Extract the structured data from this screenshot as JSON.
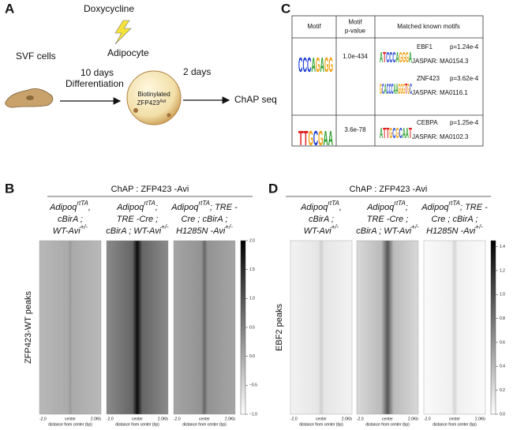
{
  "panel_a": {
    "label": "A",
    "inducer": "Doxycycline",
    "product": "Adipocyte",
    "start": "SVF cells",
    "step1": [
      "10 days",
      "Differentiation"
    ],
    "cell": [
      "Biotinylated",
      "ZFP423"
    ],
    "cell_sup": "Avi",
    "step2": "2 days",
    "end": "ChAP seq"
  },
  "panel_c": {
    "label": "C",
    "columns": [
      [
        "Motif"
      ],
      [
        "Motif",
        "p-value"
      ],
      [
        "Matched known motifs"
      ]
    ],
    "rows": [
      {
        "logo": [
          "C",
          "C",
          "C",
          "A",
          "G",
          "A",
          "G",
          "G"
        ],
        "p_value": "1.0e-434",
        "matches": [
          {
            "name": "EBF1",
            "p": "p=1.24e-4",
            "jaspar": "JASPAR: MA0154.3",
            "logo": [
              "A",
              "T",
              "C",
              "C",
              "C",
              "A",
              "G",
              "G",
              "G",
              "A"
            ]
          },
          {
            "name": "ZNF423",
            "p": "p=3.62e-4",
            "jaspar": "JASPAR: MA0116.1",
            "logo": [
              "G",
              "C",
              "A",
              "C",
              "C",
              "C",
              "A",
              "A",
              "G",
              "G",
              "G",
              "T",
              "G",
              "C"
            ]
          }
        ]
      },
      {
        "logo": [
          "T",
          "T",
          "G",
          "C",
          "G",
          "A",
          "A"
        ],
        "p_value": "3.6e-78",
        "matches": [
          {
            "name": "CEBPA",
            "p": "p=1.25e-4",
            "jaspar": "JASPAR: MA0102.3",
            "logo": [
              "A",
              "T",
              "T",
              "G",
              "C",
              "G",
              "C",
              "A",
              "A",
              "T"
            ]
          }
        ]
      }
    ]
  },
  "panel_b": {
    "label": "B",
    "title": "ChAP : ZFP423 -Avi",
    "y_label": "ZFP423-WT peaks",
    "samples": [
      [
        {
          "text": "Adipoq",
          "sup": "rtTA",
          "after": ","
        },
        {
          "text": "cBirA ;"
        },
        {
          "text": "WT-Avi",
          "sup": "+/-"
        }
      ],
      [
        {
          "text": "Adipoq",
          "sup": "rtTA",
          "after": ";"
        },
        {
          "text": "TRE -Cre ;"
        },
        {
          "text": "cBirA ; WT-Avi",
          "sup": "+/-"
        }
      ],
      [
        {
          "text": "Adipoq",
          "sup": "rtTA",
          "after": "; TRE -"
        },
        {
          "text": "Cre ; cBirA ;"
        },
        {
          "text": "H1285N -Avi",
          "sup": "+/-"
        }
      ]
    ],
    "x_ticks": [
      "-2.0",
      "center",
      "2.0Kb"
    ],
    "x_label": "distance from center (bp)",
    "colorbar": {
      "lim": [
        -1,
        2
      ],
      "ticks": [
        {
          "value": 2,
          "label": "2.0"
        },
        {
          "value": 1.5,
          "label": "1.5"
        },
        {
          "value": 1,
          "label": "1.0"
        },
        {
          "value": 0.5,
          "label": "0.5"
        },
        {
          "value": 0,
          "label": "0.0"
        },
        {
          "value": -0.5,
          "label": "−0.5"
        },
        {
          "value": -1,
          "label": "−1.0"
        }
      ]
    }
  },
  "panel_d": {
    "label": "D",
    "title": "ChAP : ZFP423 -Avi",
    "y_label": "EBF2 peaks",
    "samples": [
      [
        {
          "text": "Adipoq",
          "sup": "rtTA",
          "after": ","
        },
        {
          "text": "cBirA ;"
        },
        {
          "text": "WT-Avi",
          "sup": "+/-"
        }
      ],
      [
        {
          "text": "Adipoq",
          "sup": "rtTA",
          "after": ";"
        },
        {
          "text": "TRE -Cre ;"
        },
        {
          "text": "cBirA ; WT-Avi",
          "sup": "+/-"
        }
      ],
      [
        {
          "text": "Adipoq",
          "sup": "rtTA",
          "after": "; TRE -"
        },
        {
          "text": "Cre ; cBirA ;"
        },
        {
          "text": "H1285N -Avi",
          "sup": "+/-"
        }
      ]
    ],
    "x_ticks": [
      "-2.0",
      "center",
      "2.0Kb"
    ],
    "x_label": "distance from center (bp)",
    "colorbar": {
      "lim": [
        0,
        1.45
      ],
      "ticks": [
        {
          "value": 1.4,
          "label": "1.4"
        },
        {
          "value": 1.2,
          "label": "1.2"
        },
        {
          "value": 1,
          "label": "1.0"
        },
        {
          "value": 0.8,
          "label": "0.8"
        },
        {
          "value": 0.6,
          "label": "0.6"
        },
        {
          "value": 0.4,
          "label": "0.4"
        },
        {
          "value": 0.2,
          "label": "0.2"
        },
        {
          "value": 0,
          "label": "0.0"
        }
      ]
    }
  }
}
